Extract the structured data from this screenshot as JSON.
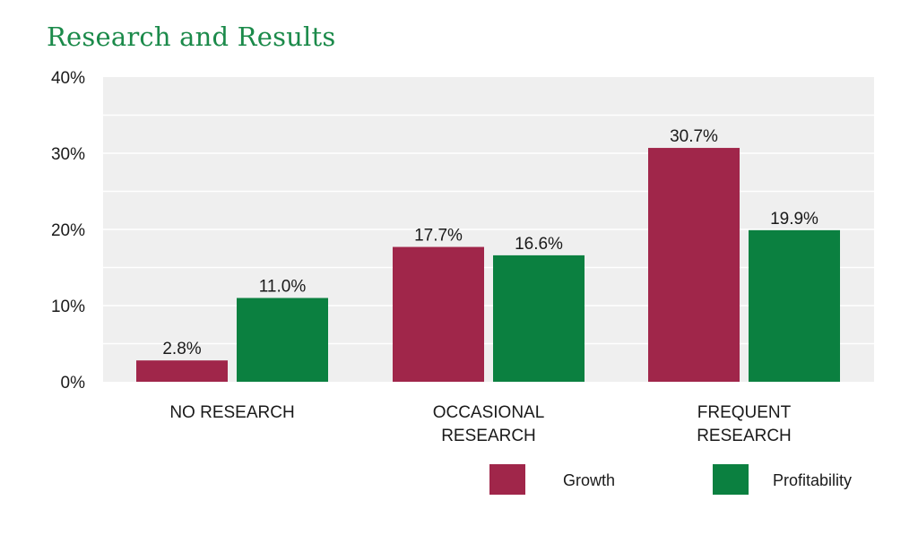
{
  "chart_data": {
    "type": "bar",
    "title": "Research and Results",
    "xlabel": "",
    "ylabel": "",
    "ylim": [
      0,
      40
    ],
    "y_ticks": [
      "0%",
      "10%",
      "20%",
      "30%",
      "40%"
    ],
    "y_tick_values": [
      0,
      10,
      20,
      30,
      40
    ],
    "grid": true,
    "legend_position": "bottom-right",
    "categories": [
      [
        "NO RESEARCH"
      ],
      [
        "OCCASIONAL",
        "RESEARCH"
      ],
      [
        "FREQUENT",
        "RESEARCH"
      ]
    ],
    "series": [
      {
        "name": "Growth",
        "color": "#a0264a",
        "values": [
          2.8,
          17.7,
          30.7
        ],
        "labels": [
          "2.8%",
          "17.7%",
          "30.7%"
        ]
      },
      {
        "name": "Profitability",
        "color": "#0b8040",
        "values": [
          11.0,
          16.6,
          19.9
        ],
        "labels": [
          "11.0%",
          "16.6%",
          "19.9%"
        ]
      }
    ]
  },
  "colors": {
    "title": "#1b8a4a",
    "plot_background": "#efefef",
    "gridline": "#ffffff"
  }
}
